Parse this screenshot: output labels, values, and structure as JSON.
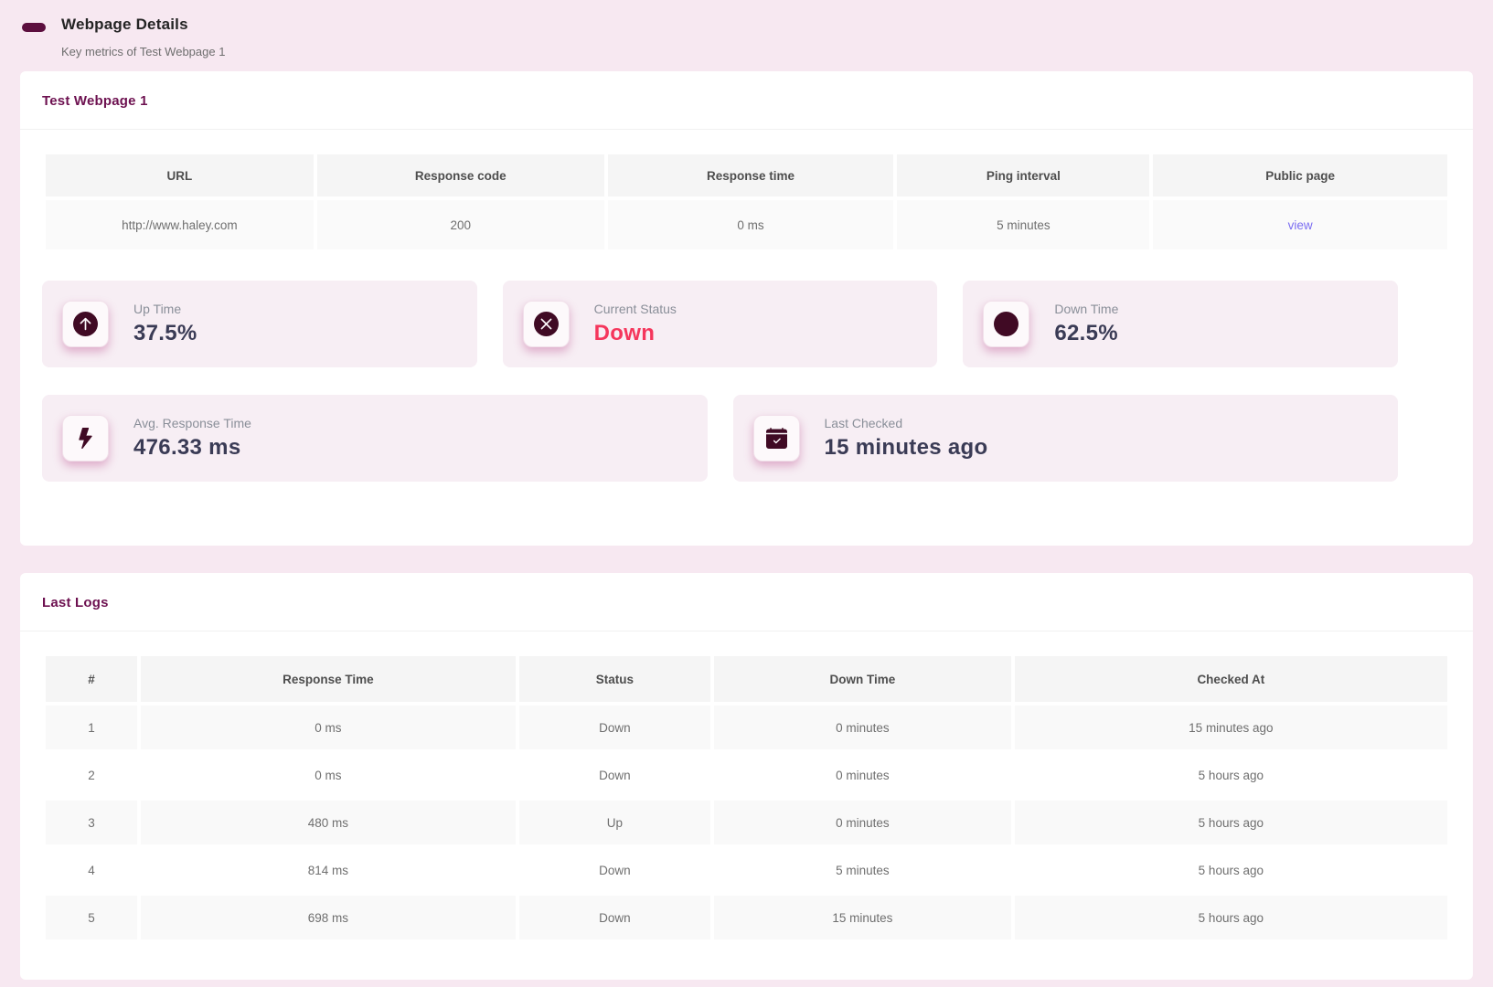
{
  "page": {
    "title": "Webpage Details",
    "subtitle": "Key metrics of Test Webpage 1"
  },
  "details_card": {
    "heading": "Test Webpage 1",
    "table": {
      "headers": [
        "URL",
        "Response code",
        "Response time",
        "Ping interval",
        "Public page"
      ],
      "row": {
        "url": "http://www.haley.com",
        "response_code": "200",
        "response_time": "0 ms",
        "ping_interval": "5 minutes",
        "public_page_link": "view"
      }
    },
    "metrics": [
      {
        "icon": "arrow-up-circle-icon",
        "label": "Up Time",
        "value": "37.5%"
      },
      {
        "icon": "x-circle-icon",
        "label": "Current Status",
        "value": "Down"
      },
      {
        "icon": "arrow-down-circle-icon",
        "label": "Down Time",
        "value": "62.5%"
      },
      {
        "icon": "lightning-bolt-icon",
        "label": "Avg. Response Time",
        "value": "476.33 ms"
      },
      {
        "icon": "calendar-check-icon",
        "label": "Last Checked",
        "value": "15 minutes ago"
      }
    ]
  },
  "logs_card": {
    "heading": "Last Logs",
    "table": {
      "headers": [
        "#",
        "Response Time",
        "Status",
        "Down Time",
        "Checked At"
      ],
      "rows": [
        [
          "1",
          "0 ms",
          "Down",
          "0 minutes",
          "15 minutes ago"
        ],
        [
          "2",
          "0 ms",
          "Down",
          "0 minutes",
          "5 hours ago"
        ],
        [
          "3",
          "480 ms",
          "Up",
          "0 minutes",
          "5 hours ago"
        ],
        [
          "4",
          "814 ms",
          "Down",
          "5 minutes",
          "5 hours ago"
        ],
        [
          "5",
          "698 ms",
          "Down",
          "15 minutes",
          "5 hours ago"
        ]
      ]
    }
  },
  "colors": {
    "page_background": "#f7e8f1",
    "accent_maroon": "#6d1150",
    "brand_pill": "#5c0e3e",
    "status_down": "#f5365c",
    "link": "#7b6df2",
    "metric_card_background": "#f7eef4",
    "metric_value": "#3a3b55",
    "icon_glyph": "#400a24"
  }
}
